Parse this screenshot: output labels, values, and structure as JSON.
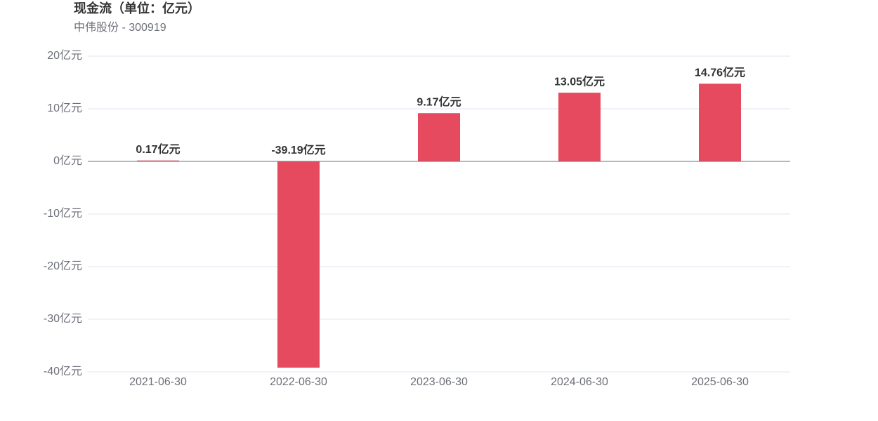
{
  "chart_data": {
    "type": "bar",
    "title": "现金流（单位：亿元）",
    "subtitle": "中伟股份 - 300919",
    "categories": [
      "2021-06-30",
      "2022-06-30",
      "2023-06-30",
      "2024-06-30",
      "2025-06-30"
    ],
    "values": [
      0.17,
      -39.19,
      9.17,
      13.05,
      14.76
    ],
    "value_labels": [
      "0.17亿元",
      "-39.19亿元",
      "9.17亿元",
      "13.05亿元",
      "14.76亿元"
    ],
    "color": "#e64a5e",
    "ylim": [
      -40,
      20
    ],
    "yticks": [
      {
        "value": -40,
        "label": "-40亿元"
      },
      {
        "value": -30,
        "label": "-30亿元"
      },
      {
        "value": -20,
        "label": "-20亿元"
      },
      {
        "value": -10,
        "label": "-10亿元"
      },
      {
        "value": 0,
        "label": "0亿元"
      },
      {
        "value": 10,
        "label": "10亿元"
      },
      {
        "value": 20,
        "label": "20亿元"
      }
    ],
    "grid": true
  }
}
